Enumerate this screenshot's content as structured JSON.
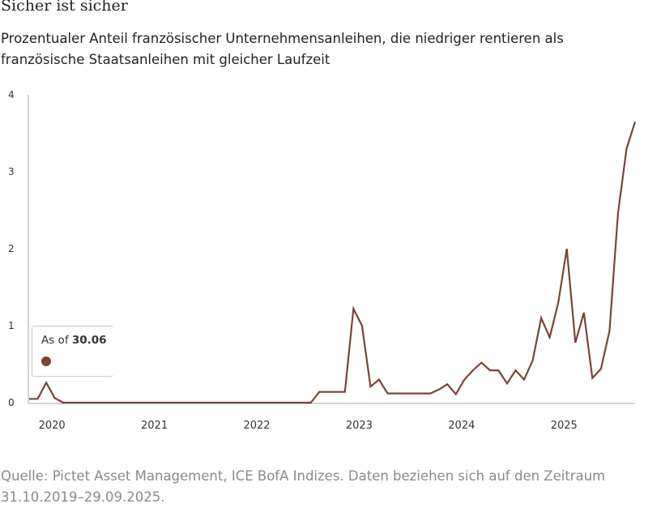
{
  "title": "Sicher ist sicher",
  "subtitle": "Prozentualer Anteil französischer Unternehmensanleihen, die niedriger rentieren als französische Staatsanleihen mit gleicher Laufzeit",
  "footer": "Quelle: Pictet Asset Management, ICE BofA Indizes. Daten beziehen sich auf den Zeitraum 31.10.2019–29.09.2025.",
  "tooltip": {
    "prefix": "As of ",
    "date": "30.06"
  },
  "colors": {
    "line": "#7b4438",
    "axis": "#aaaaaa"
  },
  "chart_data": {
    "type": "line",
    "title": "",
    "xlabel": "",
    "ylabel": "",
    "ylim": [
      0,
      4
    ],
    "y_ticks": [
      "0",
      "1",
      "2",
      "3",
      "4"
    ],
    "x_ticks": [
      "2020",
      "2021",
      "2022",
      "2023",
      "2024",
      "2025"
    ],
    "grid": false,
    "x": [
      "2019-10",
      "2019-11",
      "2019-12",
      "2020-01",
      "2020-02",
      "2020-03",
      "2020-04",
      "2020-05",
      "2020-06",
      "2020-07",
      "2020-08",
      "2020-09",
      "2020-10",
      "2020-11",
      "2020-12",
      "2021-01",
      "2021-02",
      "2021-03",
      "2021-04",
      "2021-05",
      "2021-06",
      "2021-07",
      "2021-08",
      "2021-09",
      "2021-10",
      "2021-11",
      "2021-12",
      "2022-01",
      "2022-02",
      "2022-03",
      "2022-04",
      "2022-05",
      "2022-06",
      "2022-07",
      "2022-08",
      "2022-09",
      "2022-10",
      "2022-11",
      "2022-12",
      "2023-01",
      "2023-02",
      "2023-03",
      "2023-04",
      "2023-05",
      "2023-06",
      "2023-07",
      "2023-08",
      "2023-09",
      "2023-10",
      "2023-11",
      "2023-12",
      "2024-01",
      "2024-02",
      "2024-03",
      "2024-04",
      "2024-05",
      "2024-06",
      "2024-07",
      "2024-08",
      "2024-09",
      "2024-10",
      "2024-11",
      "2024-12",
      "2025-01",
      "2025-02",
      "2025-03",
      "2025-04",
      "2025-05",
      "2025-06",
      "2025-07",
      "2025-08",
      "2025-09"
    ],
    "values": [
      0.05,
      0.05,
      0.26,
      0.06,
      0,
      0,
      0,
      0,
      0,
      0,
      0,
      0,
      0,
      0,
      0,
      0,
      0,
      0,
      0,
      0,
      0,
      0,
      0,
      0,
      0,
      0,
      0,
      0,
      0,
      0,
      0,
      0,
      0,
      0,
      0.14,
      0.14,
      0.14,
      0.14,
      1.22,
      1.0,
      0.21,
      0.3,
      0.12,
      0.12,
      0.12,
      0.12,
      0.12,
      0.12,
      0.17,
      0.24,
      0.11,
      0.3,
      0.42,
      0.52,
      0.42,
      0.42,
      0.25,
      0.42,
      0.3,
      0.55,
      1.1,
      0.85,
      1.3,
      2.0,
      0.78,
      1.17,
      0.32,
      0.44,
      0.93,
      2.46,
      3.3,
      3.65
    ]
  }
}
